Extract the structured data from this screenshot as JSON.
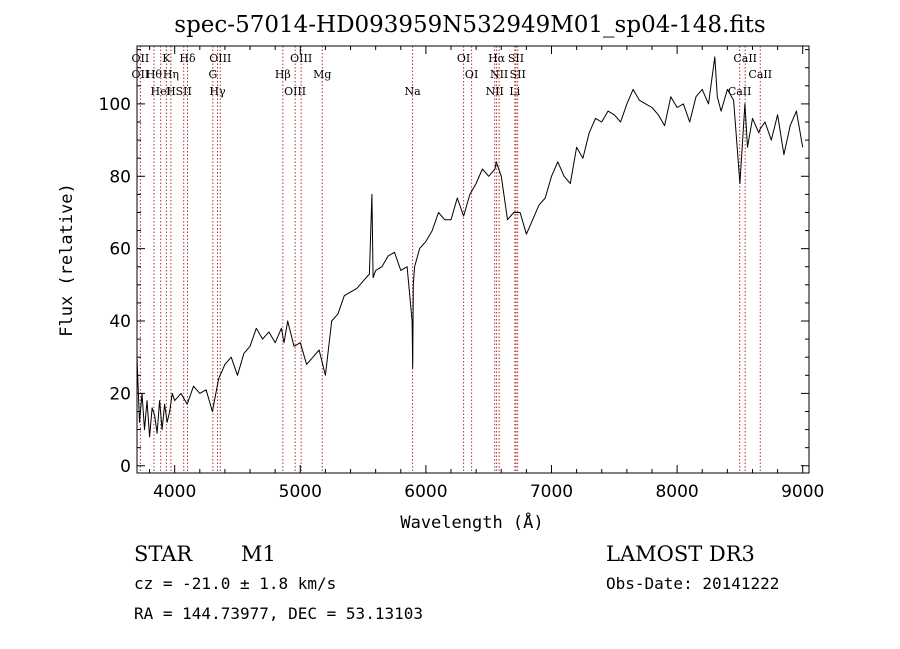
{
  "chart_data": {
    "type": "line",
    "title": "spec-57014-HD093959N532949M01_sp04-148.fits",
    "xlabel": "Wavelength (Å)",
    "ylabel": "Flux (relative)",
    "xlim": [
      3700,
      9050
    ],
    "ylim": [
      -2,
      116
    ],
    "xticks": [
      4000,
      5000,
      6000,
      7000,
      8000,
      9000
    ],
    "yticks": [
      0,
      20,
      40,
      60,
      80,
      100
    ],
    "grid": false,
    "series": [
      {
        "x": [
          3700,
          3720,
          3740,
          3760,
          3780,
          3800,
          3820,
          3840,
          3860,
          3880,
          3900,
          3920,
          3940,
          3960,
          3980,
          4000,
          4050,
          4100,
          4150,
          4200,
          4250,
          4300,
          4350,
          4400,
          4450,
          4500,
          4550,
          4600,
          4650,
          4700,
          4750,
          4800,
          4850,
          4870,
          4900,
          4950,
          5000,
          5050,
          5100,
          5150,
          5200,
          5250,
          5300,
          5350,
          5400,
          5450,
          5500,
          5550,
          5570,
          5580,
          5600,
          5650,
          5700,
          5750,
          5800,
          5850,
          5890,
          5895,
          5900,
          5910,
          5950,
          6000,
          6050,
          6100,
          6150,
          6200,
          6250,
          6300,
          6350,
          6400,
          6450,
          6500,
          6550,
          6560,
          6600,
          6650,
          6700,
          6750,
          6800,
          6850,
          6900,
          6950,
          7000,
          7050,
          7100,
          7150,
          7200,
          7250,
          7300,
          7350,
          7400,
          7450,
          7500,
          7550,
          7600,
          7650,
          7700,
          7750,
          7800,
          7850,
          7900,
          7950,
          8000,
          8050,
          8100,
          8150,
          8200,
          8250,
          8300,
          8320,
          8350,
          8400,
          8450,
          8500,
          8540,
          8560,
          8600,
          8650,
          8660,
          8700,
          8750,
          8800,
          8850,
          8900,
          8950,
          9000
        ],
        "values": [
          30,
          12,
          20,
          10,
          18,
          8,
          16,
          14,
          9,
          18,
          10,
          17,
          12,
          15,
          20,
          18,
          20,
          17,
          22,
          20,
          21,
          15,
          24,
          28,
          30,
          25,
          31,
          33,
          38,
          35,
          37,
          34,
          38,
          34,
          40,
          33,
          34,
          28,
          30,
          32,
          25,
          40,
          42,
          47,
          48,
          49,
          51,
          53,
          75,
          52,
          54,
          55,
          58,
          59,
          54,
          55,
          40,
          27,
          50,
          55,
          60,
          62,
          65,
          70,
          68,
          68,
          74,
          69,
          75,
          78,
          82,
          80,
          82,
          84,
          80,
          68,
          70,
          70,
          64,
          68,
          72,
          74,
          80,
          84,
          80,
          78,
          88,
          85,
          92,
          96,
          95,
          98,
          97,
          95,
          100,
          104,
          101,
          100,
          99,
          97,
          94,
          102,
          99,
          100,
          95,
          102,
          104,
          100,
          113,
          102,
          98,
          104,
          101,
          78,
          100,
          88,
          96,
          92,
          93,
          95,
          90,
          97,
          86,
          94,
          98,
          88
        ]
      }
    ],
    "lines": [
      {
        "x": 3727,
        "labels": [
          "OII",
          "OII"
        ]
      },
      {
        "x": 3835,
        "labels": [
          "Hθ"
        ]
      },
      {
        "x": 3889,
        "labels": [
          "HeI"
        ]
      },
      {
        "x": 3934,
        "labels": [
          "K"
        ]
      },
      {
        "x": 3970,
        "labels": [
          "Hη",
          "H"
        ]
      },
      {
        "x": 4072,
        "labels": [
          "SII"
        ]
      },
      {
        "x": 4102,
        "labels": [
          "Hδ"
        ]
      },
      {
        "x": 4304,
        "labels": [
          "G"
        ]
      },
      {
        "x": 4341,
        "labels": [
          "Hγ"
        ]
      },
      {
        "x": 4363,
        "labels": [
          "OIII"
        ]
      },
      {
        "x": 4861,
        "labels": [
          "Hβ"
        ]
      },
      {
        "x": 4959,
        "labels": [
          "OIII"
        ]
      },
      {
        "x": 5007,
        "labels": [
          "OIII"
        ]
      },
      {
        "x": 5175,
        "labels": [
          "Mg"
        ]
      },
      {
        "x": 5894,
        "labels": [
          "Na"
        ]
      },
      {
        "x": 6300,
        "labels": [
          "OI"
        ]
      },
      {
        "x": 6364,
        "labels": [
          "OI"
        ]
      },
      {
        "x": 6548,
        "labels": [
          "NII"
        ]
      },
      {
        "x": 6563,
        "labels": [
          "Hα"
        ]
      },
      {
        "x": 6583,
        "labels": [
          "NII"
        ]
      },
      {
        "x": 6708,
        "labels": [
          "Li"
        ]
      },
      {
        "x": 6717,
        "labels": [
          "SII"
        ]
      },
      {
        "x": 6731,
        "labels": [
          "SII"
        ]
      },
      {
        "x": 8498,
        "labels": [
          "CaII"
        ]
      },
      {
        "x": 8542,
        "labels": [
          "CaII"
        ]
      },
      {
        "x": 8662,
        "labels": [
          "CaII"
        ]
      }
    ]
  },
  "info": {
    "object_class": "STAR",
    "subclass": "M1",
    "redshift": "cz = -21.0 ± 1.8 km/s",
    "coords": "RA = 144.73977, DEC =  53.13103",
    "survey": "LAMOST DR3",
    "obs_date": "Obs-Date: 20141222"
  },
  "colors": {
    "line": "#000000",
    "marker": "#b03030",
    "background": "#ffffff"
  }
}
